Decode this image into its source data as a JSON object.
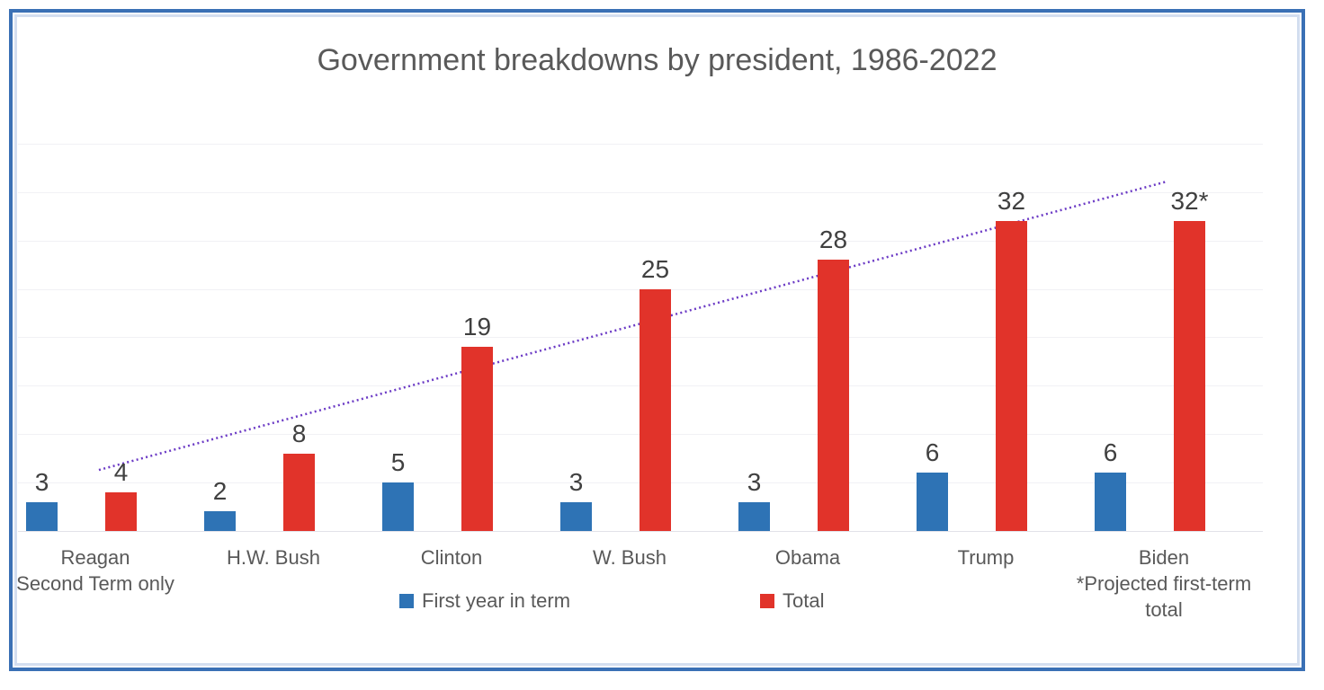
{
  "chart_data": {
    "type": "bar",
    "title": "Government breakdowns by president, 1986-2022",
    "categories": [
      "Reagan",
      "H.W. Bush",
      "Clinton",
      "W. Bush",
      "Obama",
      "Trump",
      "Biden"
    ],
    "category_sublabels": [
      "Second Term only",
      "",
      "",
      "",
      "",
      "",
      "*Projected first-term total"
    ],
    "series": [
      {
        "name": "First year in term",
        "color": "#2E73B5",
        "values": [
          3,
          2,
          5,
          3,
          3,
          6,
          6
        ],
        "labels": [
          "3",
          "2",
          "5",
          "3",
          "3",
          "6",
          "6"
        ]
      },
      {
        "name": "Total",
        "color": "#E1332A",
        "values": [
          4,
          8,
          19,
          25,
          28,
          32,
          32
        ],
        "labels": [
          "4",
          "8",
          "19",
          "25",
          "28",
          "32",
          "32*"
        ]
      }
    ],
    "ylim": [
      0,
      40
    ],
    "gridline_step": 5,
    "grid": true,
    "legend_position": "bottom",
    "xlabel": "",
    "ylabel": "",
    "trendline": {
      "style": "dotted",
      "color": "#6B3AC5",
      "from": {
        "group": 0.02,
        "value": 6.3
      },
      "to": {
        "group": 6.02,
        "value": 36.1
      }
    },
    "colors": {
      "title_text": "#595959",
      "value_label_text": "#404040",
      "axis_text": "#595959",
      "gridline": "#F1F1F5",
      "baseline": "#E2E2E9",
      "frame_border": "#3A70B5",
      "frame_inner_border": "#D3DEF0"
    }
  }
}
